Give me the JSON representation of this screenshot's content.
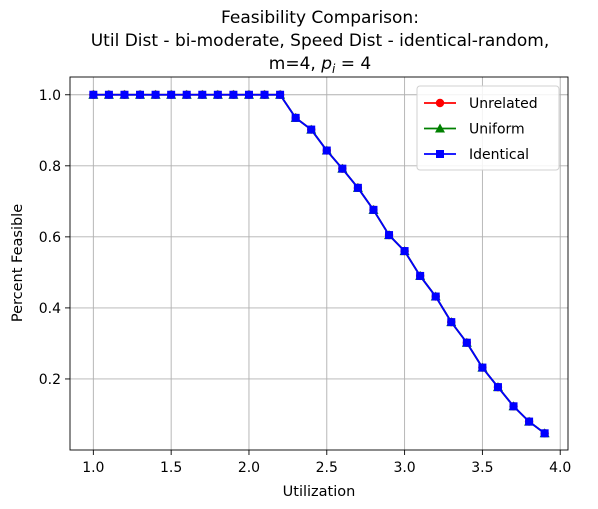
{
  "chart_data": {
    "type": "line",
    "title_lines": [
      "Feasibility Comparison:",
      "Util Dist - bi-moderate, Speed Dist - identical-random,",
      "m=4, "
    ],
    "title_math": {
      "var": "p",
      "sub": "i",
      "rest": " = 4"
    },
    "xlabel": "Utilization",
    "ylabel": "Percent Feasible",
    "xlim": [
      0.85,
      4.05
    ],
    "ylim": [
      0.0,
      1.05
    ],
    "xticks": [
      1.0,
      1.5,
      2.0,
      2.5,
      3.0,
      3.5,
      4.0
    ],
    "xtick_labels": [
      "1.0",
      "1.5",
      "2.0",
      "2.5",
      "3.0",
      "3.5",
      "4.0"
    ],
    "yticks": [
      0.2,
      0.4,
      0.6,
      0.8,
      1.0
    ],
    "ytick_labels": [
      "0.2",
      "0.4",
      "0.6",
      "0.8",
      "1.0"
    ],
    "grid": true,
    "legend_position": "top-right",
    "x": [
      1.0,
      1.1,
      1.2,
      1.3,
      1.4,
      1.5,
      1.6,
      1.7,
      1.8,
      1.9,
      2.0,
      2.1,
      2.2,
      2.3,
      2.4,
      2.5,
      2.6,
      2.7,
      2.8,
      2.9,
      3.0,
      3.1,
      3.2,
      3.3,
      3.4,
      3.5,
      3.6,
      3.7,
      3.8,
      3.9
    ],
    "series": [
      {
        "name": "Unrelated",
        "color": "#ff0000",
        "marker": "circle",
        "values": [
          1.0,
          1.0,
          1.0,
          1.0,
          1.0,
          1.0,
          1.0,
          1.0,
          1.0,
          1.0,
          1.0,
          1.0,
          1.0,
          0.935,
          0.902,
          0.843,
          0.792,
          0.738,
          0.676,
          0.605,
          0.56,
          0.49,
          0.432,
          0.36,
          0.302,
          0.232,
          0.177,
          0.123,
          0.08,
          0.047
        ]
      },
      {
        "name": "Uniform",
        "color": "#008000",
        "marker": "triangle",
        "values": [
          1.0,
          1.0,
          1.0,
          1.0,
          1.0,
          1.0,
          1.0,
          1.0,
          1.0,
          1.0,
          1.0,
          1.0,
          1.0,
          0.935,
          0.902,
          0.843,
          0.792,
          0.738,
          0.676,
          0.605,
          0.56,
          0.49,
          0.432,
          0.36,
          0.302,
          0.232,
          0.177,
          0.123,
          0.08,
          0.047
        ]
      },
      {
        "name": "Identical",
        "color": "#0000ff",
        "marker": "square",
        "values": [
          1.0,
          1.0,
          1.0,
          1.0,
          1.0,
          1.0,
          1.0,
          1.0,
          1.0,
          1.0,
          1.0,
          1.0,
          1.0,
          0.935,
          0.902,
          0.843,
          0.792,
          0.738,
          0.676,
          0.605,
          0.56,
          0.49,
          0.432,
          0.36,
          0.302,
          0.232,
          0.177,
          0.123,
          0.08,
          0.047
        ]
      }
    ]
  }
}
